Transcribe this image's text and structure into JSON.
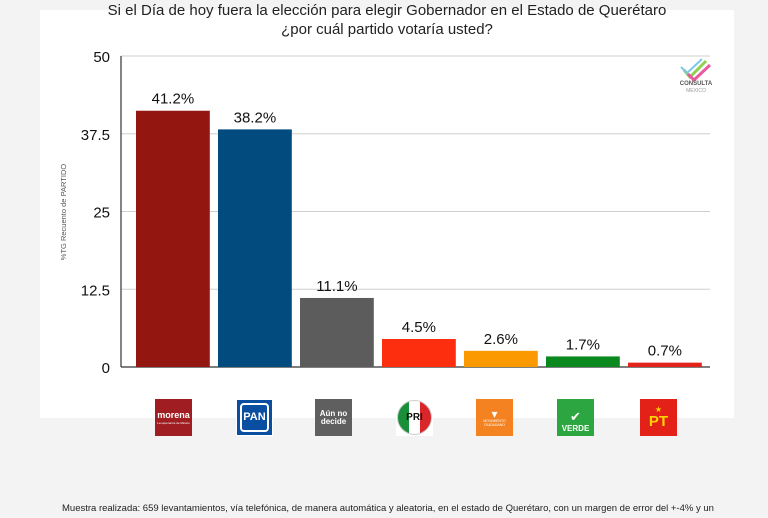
{
  "chart_data": {
    "type": "bar",
    "title_lines": [
      "Si el Día de hoy fuera la elección para elegir Gobernador en el Estado de Querétaro",
      "¿por cuál partido votaría usted?"
    ],
    "ylabel": "%TG Recuento de PARTIDO",
    "xlabel": "",
    "ylim": [
      0,
      50
    ],
    "yticks": [
      "0",
      "12.5",
      "25",
      "37.5",
      "50"
    ],
    "ytick_values": [
      0,
      12.5,
      25,
      37.5,
      50
    ],
    "categories": [
      "morena",
      "PAN",
      "Aún no decide",
      "PRI",
      "Movimiento Ciudadano",
      "VERDE",
      "PT"
    ],
    "values": [
      41.2,
      38.2,
      11.1,
      4.5,
      2.6,
      1.7,
      0.7
    ],
    "value_labels": [
      "41.2%",
      "38.2%",
      "11.1%",
      "4.5%",
      "2.6%",
      "1.7%",
      "0.7%"
    ],
    "colors": [
      "#941610",
      "#014b7e",
      "#5c5c5c",
      "#fc2e0e",
      "#fb9a00",
      "#0a8a1e",
      "#e3231b"
    ],
    "grid": true,
    "legend": "none"
  },
  "logo": {
    "text": "CONSULTA",
    "sub": "MEXICO"
  },
  "party_logos": {
    "morena": "morena",
    "morena_sub": "La esperanza de México",
    "pan": "PAN",
    "aun_line1": "Aún no",
    "aun_line2": "decide",
    "pri": "PRI",
    "mc": "MOVIMIENTO CIUDADANO",
    "verde": "VERDE",
    "pt": "PT"
  },
  "footnote": "Muestra realizada: 659 levantamientos, vía telefónica, de manera automática y aleatoria, en el estado de Querétaro, con un margen de error del +-4% y un"
}
